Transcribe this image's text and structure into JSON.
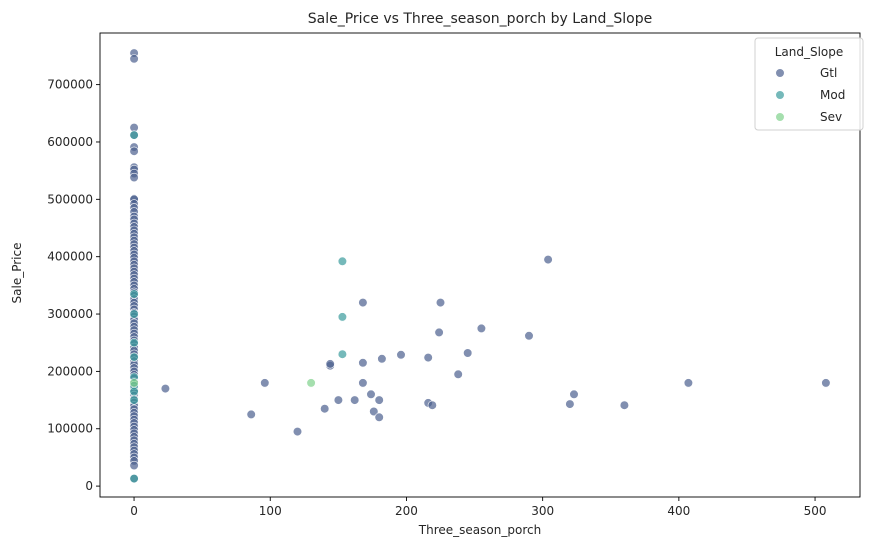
{
  "chart_data": {
    "type": "scatter",
    "title": "Sale_Price vs Three_season_porch by Land_Slope",
    "xlabel": "Three_season_porch",
    "ylabel": "Sale_Price",
    "xlim": [
      -25,
      533
    ],
    "ylim": [
      -19000,
      790000
    ],
    "xticks": [
      0,
      100,
      200,
      300,
      400,
      500
    ],
    "yticks": [
      0,
      100000,
      200000,
      300000,
      400000,
      500000,
      600000,
      700000
    ],
    "grid": false,
    "legend": {
      "title": "Land_Slope",
      "placement": "top-right"
    },
    "series": [
      {
        "name": "Gtl",
        "color": "#4c5f8f",
        "points": [
          [
            0,
            755000
          ],
          [
            0,
            745000
          ],
          [
            0,
            625000
          ],
          [
            0,
            612000
          ],
          [
            0,
            591000
          ],
          [
            0,
            584000
          ],
          [
            0,
            556000
          ],
          [
            0,
            552000
          ],
          [
            0,
            545000
          ],
          [
            0,
            538000
          ],
          [
            0,
            501000
          ],
          [
            0,
            500000
          ],
          [
            0,
            492000
          ],
          [
            0,
            485000
          ],
          [
            0,
            478000
          ],
          [
            0,
            470000
          ],
          [
            0,
            465000
          ],
          [
            0,
            458000
          ],
          [
            0,
            452000
          ],
          [
            0,
            446000
          ],
          [
            0,
            440000
          ],
          [
            0,
            434000
          ],
          [
            0,
            428000
          ],
          [
            0,
            422000
          ],
          [
            0,
            416000
          ],
          [
            0,
            410000
          ],
          [
            0,
            404000
          ],
          [
            0,
            398000
          ],
          [
            0,
            392000
          ],
          [
            0,
            386000
          ],
          [
            0,
            380000
          ],
          [
            0,
            374000
          ],
          [
            0,
            368000
          ],
          [
            0,
            362000
          ],
          [
            0,
            356000
          ],
          [
            0,
            350000
          ],
          [
            0,
            344000
          ],
          [
            0,
            338000
          ],
          [
            0,
            332000
          ],
          [
            0,
            326000
          ],
          [
            0,
            320000
          ],
          [
            0,
            314000
          ],
          [
            0,
            308000
          ],
          [
            0,
            302000
          ],
          [
            0,
            296000
          ],
          [
            0,
            290000
          ],
          [
            0,
            284000
          ],
          [
            0,
            278000
          ],
          [
            0,
            272000
          ],
          [
            0,
            266000
          ],
          [
            0,
            260000
          ],
          [
            0,
            254000
          ],
          [
            0,
            248000
          ],
          [
            0,
            242000
          ],
          [
            0,
            236000
          ],
          [
            0,
            230000
          ],
          [
            0,
            224000
          ],
          [
            0,
            218000
          ],
          [
            0,
            212000
          ],
          [
            0,
            206000
          ],
          [
            0,
            200000
          ],
          [
            0,
            194000
          ],
          [
            0,
            188000
          ],
          [
            0,
            182000
          ],
          [
            0,
            176000
          ],
          [
            0,
            170000
          ],
          [
            0,
            164000
          ],
          [
            0,
            158000
          ],
          [
            0,
            152000
          ],
          [
            0,
            146000
          ],
          [
            0,
            140000
          ],
          [
            0,
            134000
          ],
          [
            0,
            128000
          ],
          [
            0,
            122000
          ],
          [
            0,
            116000
          ],
          [
            0,
            110000
          ],
          [
            0,
            104000
          ],
          [
            0,
            98000
          ],
          [
            0,
            92000
          ],
          [
            0,
            86000
          ],
          [
            0,
            80000
          ],
          [
            0,
            74000
          ],
          [
            0,
            68000
          ],
          [
            0,
            62000
          ],
          [
            0,
            56000
          ],
          [
            0,
            50000
          ],
          [
            0,
            44000
          ],
          [
            0,
            36000
          ],
          [
            0,
            13000
          ],
          [
            23,
            170000
          ],
          [
            86,
            125000
          ],
          [
            96,
            180000
          ],
          [
            120,
            95000
          ],
          [
            140,
            135000
          ],
          [
            144,
            210000
          ],
          [
            144,
            213000
          ],
          [
            150,
            150000
          ],
          [
            162,
            150000
          ],
          [
            168,
            320000
          ],
          [
            168,
            180000
          ],
          [
            168,
            215000
          ],
          [
            174,
            160000
          ],
          [
            176,
            130000
          ],
          [
            180,
            120000
          ],
          [
            180,
            150000
          ],
          [
            182,
            222000
          ],
          [
            196,
            229000
          ],
          [
            216,
            224000
          ],
          [
            216,
            145000
          ],
          [
            219,
            141000
          ],
          [
            224,
            268000
          ],
          [
            225,
            320000
          ],
          [
            238,
            195000
          ],
          [
            245,
            232000
          ],
          [
            255,
            275000
          ],
          [
            290,
            262000
          ],
          [
            304,
            395000
          ],
          [
            320,
            143000
          ],
          [
            323,
            160000
          ],
          [
            360,
            141000
          ],
          [
            407,
            180000
          ],
          [
            508,
            180000
          ]
        ]
      },
      {
        "name": "Mod",
        "color": "#3a9b9c",
        "points": [
          [
            0,
            612000
          ],
          [
            0,
            335000
          ],
          [
            0,
            300000
          ],
          [
            0,
            250000
          ],
          [
            0,
            225000
          ],
          [
            0,
            190000
          ],
          [
            0,
            175000
          ],
          [
            0,
            165000
          ],
          [
            0,
            150000
          ],
          [
            0,
            13000
          ],
          [
            153,
            392000
          ],
          [
            153,
            295000
          ],
          [
            153,
            230000
          ]
        ]
      },
      {
        "name": "Sev",
        "color": "#7fd18b",
        "points": [
          [
            0,
            180000
          ],
          [
            130,
            180000
          ]
        ]
      }
    ]
  }
}
